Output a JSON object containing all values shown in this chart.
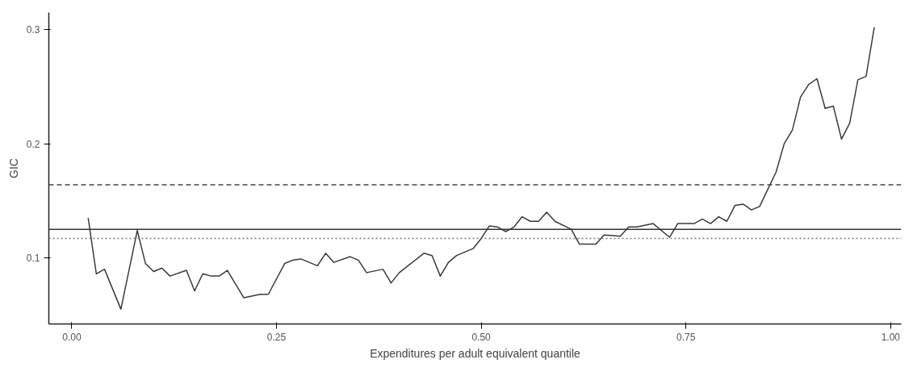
{
  "chart_data": {
    "type": "line",
    "xlabel": "Expenditures per adult equivalent quantile",
    "ylabel": "GIC",
    "xlim": [
      -0.028,
      1.013
    ],
    "ylim": [
      0.042,
      0.315
    ],
    "xticks": [
      {
        "value": 0,
        "label": "0.00"
      },
      {
        "value": 0.25,
        "label": "0.25"
      },
      {
        "value": 0.5,
        "label": "0.50"
      },
      {
        "value": 0.75,
        "label": "0.75"
      },
      {
        "value": 1,
        "label": "1.00"
      }
    ],
    "yticks": [
      0.1,
      0.2,
      0.3
    ],
    "grid": false,
    "marker": "none",
    "line_style": "solid",
    "series": [
      {
        "color": "#3a3a3a",
        "x": [
          0.02,
          0.03,
          0.04,
          0.06,
          0.08,
          0.09,
          0.1,
          0.11,
          0.12,
          0.14,
          0.15,
          0.16,
          0.17,
          0.18,
          0.19,
          0.21,
          0.23,
          0.24,
          0.26,
          0.27,
          0.28,
          0.3,
          0.31,
          0.32,
          0.34,
          0.35,
          0.36,
          0.38,
          0.39,
          0.4,
          0.43,
          0.44,
          0.45,
          0.46,
          0.47,
          0.49,
          0.5,
          0.51,
          0.52,
          0.53,
          0.54,
          0.55,
          0.56,
          0.57,
          0.58,
          0.59,
          0.61,
          0.62,
          0.64,
          0.65,
          0.67,
          0.68,
          0.69,
          0.71,
          0.73,
          0.74,
          0.76,
          0.77,
          0.78,
          0.79,
          0.8,
          0.81,
          0.82,
          0.83,
          0.84,
          0.85,
          0.86,
          0.87,
          0.88,
          0.89,
          0.9,
          0.91,
          0.92,
          0.93,
          0.94,
          0.95,
          0.96,
          0.97,
          0.98
        ],
        "values": [
          0.135,
          0.086,
          0.09,
          0.055,
          0.124,
          0.095,
          0.088,
          0.091,
          0.084,
          0.089,
          0.071,
          0.086,
          0.084,
          0.084,
          0.089,
          0.065,
          0.068,
          0.068,
          0.095,
          0.098,
          0.099,
          0.093,
          0.104,
          0.096,
          0.101,
          0.098,
          0.087,
          0.09,
          0.078,
          0.087,
          0.104,
          0.102,
          0.084,
          0.096,
          0.102,
          0.108,
          0.117,
          0.128,
          0.127,
          0.123,
          0.127,
          0.136,
          0.132,
          0.132,
          0.14,
          0.132,
          0.125,
          0.112,
          0.112,
          0.12,
          0.119,
          0.127,
          0.127,
          0.13,
          0.118,
          0.13,
          0.13,
          0.134,
          0.13,
          0.136,
          0.132,
          0.146,
          0.147,
          0.142,
          0.145,
          0.16,
          0.175,
          0.2,
          0.212,
          0.241,
          0.252,
          0.257,
          0.231,
          0.233,
          0.204,
          0.218,
          0.256,
          0.259,
          0.302
        ]
      }
    ],
    "ref_lines": [
      {
        "axis": "y",
        "value": 0.164,
        "color": "#444444",
        "line_style": "dashed"
      },
      {
        "axis": "y",
        "value": 0.125,
        "color": "#333333",
        "line_style": "solid"
      },
      {
        "axis": "y",
        "value": 0.117,
        "color": "#777777",
        "line_style": "dotted"
      }
    ]
  }
}
